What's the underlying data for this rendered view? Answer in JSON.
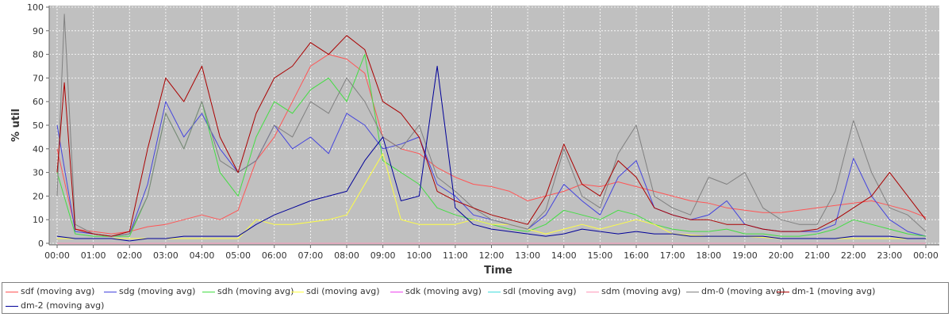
{
  "chart_data": {
    "type": "line",
    "xlabel": "Time",
    "ylabel": "% util",
    "ylim": [
      0,
      100
    ],
    "xlim": [
      0,
      24
    ],
    "grid": true,
    "legend_position": "bottom",
    "x_ticks": [
      "00:00",
      "01:00",
      "02:00",
      "03:00",
      "04:00",
      "05:00",
      "06:00",
      "07:00",
      "08:00",
      "09:00",
      "10:00",
      "11:00",
      "12:00",
      "13:00",
      "14:00",
      "15:00",
      "16:00",
      "17:00",
      "18:00",
      "19:00",
      "20:00",
      "21:00",
      "22:00",
      "23:00",
      "00:00"
    ],
    "y_ticks": [
      "0",
      "10",
      "20",
      "30",
      "40",
      "50",
      "60",
      "70",
      "80",
      "90",
      "100"
    ],
    "series": [
      {
        "name": "sdf (moving avg)",
        "color": "#ff5555",
        "x": [
          0,
          0.5,
          1,
          1.5,
          2,
          2.5,
          3,
          3.5,
          4,
          4.5,
          5,
          5.5,
          6,
          6.5,
          7,
          7.5,
          8,
          8.5,
          9,
          9.5,
          10,
          10.5,
          11,
          11.5,
          12,
          12.5,
          13,
          13.5,
          14,
          14.5,
          15,
          15.5,
          16,
          16.5,
          17,
          17.5,
          18,
          18.5,
          19,
          19.5,
          20,
          20.5,
          21,
          21.5,
          22,
          22.5,
          23,
          23.5,
          24
        ],
        "values": [
          40,
          6,
          5,
          4,
          5,
          7,
          8,
          10,
          12,
          10,
          14,
          35,
          45,
          60,
          75,
          80,
          78,
          72,
          45,
          40,
          38,
          32,
          28,
          25,
          24,
          22,
          18,
          20,
          22,
          25,
          24,
          26,
          24,
          22,
          20,
          18,
          17,
          15,
          14,
          13,
          13,
          14,
          15,
          16,
          17,
          18,
          16,
          14,
          11
        ]
      },
      {
        "name": "sdg (moving avg)",
        "color": "#4444dd",
        "x": [
          0,
          0.5,
          1,
          1.5,
          2,
          2.5,
          3,
          3.5,
          4,
          4.5,
          5,
          5.5,
          6,
          6.5,
          7,
          7.5,
          8,
          8.5,
          9,
          9.5,
          10,
          10.5,
          11,
          11.5,
          12,
          12.5,
          13,
          13.5,
          14,
          14.5,
          15,
          15.5,
          16,
          16.5,
          17,
          17.5,
          18,
          18.5,
          19,
          19.5,
          20,
          20.5,
          21,
          21.5,
          22,
          22.5,
          23,
          23.5,
          24
        ],
        "values": [
          50,
          5,
          4,
          3,
          4,
          25,
          60,
          45,
          55,
          40,
          30,
          35,
          50,
          40,
          45,
          38,
          55,
          50,
          40,
          42,
          45,
          25,
          20,
          12,
          10,
          8,
          6,
          12,
          25,
          18,
          12,
          28,
          35,
          15,
          12,
          10,
          12,
          18,
          8,
          6,
          5,
          5,
          5,
          8,
          36,
          20,
          10,
          5,
          3
        ]
      },
      {
        "name": "sdh (moving avg)",
        "color": "#44dd44",
        "x": [
          0,
          0.5,
          1,
          1.5,
          2,
          2.5,
          3,
          3.5,
          4,
          4.5,
          5,
          5.5,
          6,
          6.5,
          7,
          7.5,
          8,
          8.5,
          9,
          9.5,
          10,
          10.5,
          11,
          11.5,
          12,
          12.5,
          13,
          13.5,
          14,
          14.5,
          15,
          15.5,
          16,
          16.5,
          17,
          17.5,
          18,
          18.5,
          19,
          19.5,
          20,
          20.5,
          21,
          21.5,
          22,
          22.5,
          23,
          23.5,
          24
        ],
        "values": [
          30,
          4,
          3,
          3,
          3,
          20,
          55,
          40,
          60,
          30,
          20,
          45,
          60,
          55,
          65,
          70,
          60,
          80,
          35,
          30,
          25,
          15,
          12,
          10,
          8,
          6,
          5,
          8,
          14,
          12,
          10,
          14,
          12,
          8,
          6,
          5,
          5,
          6,
          4,
          4,
          3,
          3,
          4,
          6,
          10,
          8,
          6,
          4,
          3
        ]
      },
      {
        "name": "sdi (moving avg)",
        "color": "#ffff44",
        "x": [
          0,
          1,
          2,
          3,
          4,
          5,
          5.5,
          6,
          6.5,
          7,
          7.5,
          8,
          8.5,
          9,
          9.5,
          10,
          10.5,
          11,
          11.5,
          12,
          12.5,
          13,
          13.5,
          14,
          14.5,
          15,
          15.5,
          16,
          16.5,
          17,
          18,
          19,
          20,
          21,
          22,
          23,
          24
        ],
        "values": [
          2,
          2,
          2,
          2,
          2,
          2,
          10,
          8,
          8,
          9,
          10,
          12,
          25,
          38,
          10,
          8,
          8,
          8,
          10,
          8,
          8,
          6,
          4,
          6,
          8,
          6,
          8,
          10,
          8,
          4,
          3,
          3,
          2,
          2,
          2,
          2,
          2
        ]
      },
      {
        "name": "sdk (moving avg)",
        "color": "#ee44ee",
        "x": [
          0,
          24
        ],
        "values": [
          0,
          0
        ]
      },
      {
        "name": "sdl (moving avg)",
        "color": "#44dddd",
        "x": [
          0,
          24
        ],
        "values": [
          0,
          0
        ]
      },
      {
        "name": "sdm (moving avg)",
        "color": "#ff99bb",
        "x": [
          0,
          24
        ],
        "values": [
          0,
          0
        ]
      },
      {
        "name": "dm-0 (moving avg)",
        "color": "#808080",
        "x": [
          0,
          0.2,
          0.5,
          1,
          1.5,
          2,
          2.5,
          3,
          3.5,
          4,
          4.5,
          5,
          5.5,
          6,
          6.5,
          7,
          7.5,
          8,
          8.5,
          9,
          9.5,
          10,
          10.5,
          11,
          11.5,
          12,
          12.5,
          13,
          13.5,
          14,
          14.5,
          15,
          15.5,
          16,
          16.5,
          17,
          17.5,
          18,
          18.5,
          19,
          19.5,
          20,
          20.5,
          21,
          21.5,
          22,
          22.5,
          23,
          23.5,
          24
        ],
        "values": [
          20,
          97,
          8,
          4,
          3,
          4,
          20,
          55,
          40,
          60,
          35,
          30,
          35,
          50,
          45,
          60,
          55,
          70,
          60,
          45,
          40,
          50,
          28,
          22,
          15,
          10,
          8,
          6,
          14,
          40,
          20,
          15,
          38,
          50,
          20,
          15,
          12,
          28,
          25,
          30,
          15,
          10,
          8,
          8,
          22,
          52,
          30,
          15,
          12,
          5
        ]
      },
      {
        "name": "dm-1 (moving avg)",
        "color": "#aa0000",
        "x": [
          0,
          0.2,
          0.5,
          1,
          1.5,
          2,
          2.5,
          3,
          3.5,
          4,
          4.5,
          5,
          5.5,
          6,
          6.5,
          7,
          7.5,
          8,
          8.5,
          9,
          9.5,
          10,
          10.5,
          11,
          11.5,
          12,
          12.5,
          13,
          13.5,
          14,
          14.5,
          15,
          15.5,
          16,
          16.5,
          17,
          17.5,
          18,
          18.5,
          19,
          19.5,
          20,
          20.5,
          21,
          21.5,
          22,
          22.5,
          23,
          23.5,
          24
        ],
        "values": [
          30,
          68,
          6,
          4,
          3,
          5,
          40,
          70,
          60,
          75,
          45,
          30,
          55,
          70,
          75,
          85,
          80,
          88,
          82,
          60,
          55,
          45,
          22,
          18,
          15,
          12,
          10,
          8,
          20,
          42,
          25,
          20,
          35,
          28,
          15,
          12,
          10,
          10,
          8,
          8,
          6,
          5,
          5,
          6,
          10,
          15,
          20,
          30,
          20,
          10
        ]
      },
      {
        "name": "dm-2 (moving avg)",
        "color": "#000099",
        "x": [
          0,
          0.5,
          1,
          1.5,
          2,
          2.5,
          3,
          3.5,
          4,
          4.5,
          5,
          5.5,
          6,
          6.5,
          7,
          7.5,
          8,
          8.5,
          9,
          9.5,
          10,
          10.5,
          11,
          11.5,
          12,
          12.5,
          13,
          13.5,
          14,
          14.5,
          15,
          15.5,
          16,
          16.5,
          17,
          17.5,
          18,
          18.5,
          19,
          19.5,
          20,
          20.5,
          21,
          21.5,
          22,
          22.5,
          23,
          23.5,
          24
        ],
        "values": [
          3,
          2,
          2,
          2,
          1,
          2,
          2,
          3,
          3,
          3,
          3,
          8,
          12,
          15,
          18,
          20,
          22,
          35,
          45,
          18,
          20,
          75,
          15,
          8,
          6,
          5,
          4,
          3,
          4,
          6,
          5,
          4,
          5,
          4,
          4,
          3,
          3,
          3,
          3,
          3,
          2,
          2,
          2,
          2,
          3,
          3,
          3,
          2,
          2
        ]
      }
    ]
  }
}
